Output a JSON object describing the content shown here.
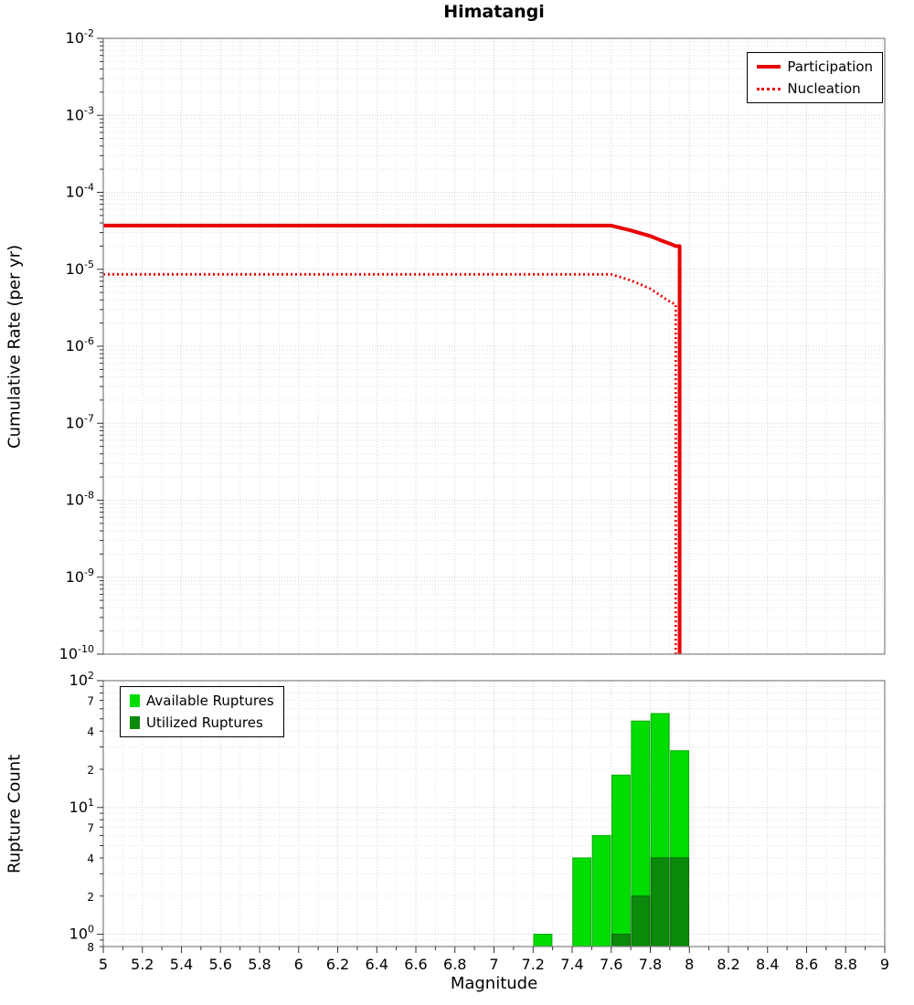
{
  "title": "Himatangi",
  "axes": {
    "x_title": "Magnitude",
    "top_y_title": "Cumulative Rate (per yr)",
    "bottom_y_title": "Rupture Count"
  },
  "legend_top": {
    "items": [
      {
        "label": "Participation",
        "style": "solid",
        "color": "#e80000"
      },
      {
        "label": "Nucleation",
        "style": "dotted",
        "color": "#e80000"
      }
    ]
  },
  "legend_bottom": {
    "items": [
      {
        "label": "Available Ruptures",
        "color": "#00dd00"
      },
      {
        "label": "Utilized Ruptures",
        "color": "#0b8a0b"
      }
    ]
  },
  "chart_data": [
    {
      "type": "line",
      "title": "Himatangi",
      "xlabel": "Magnitude",
      "ylabel": "Cumulative Rate (per yr)",
      "xlim": [
        5,
        9
      ],
      "ylim": [
        1e-10,
        0.01
      ],
      "yscale": "log",
      "grid": true,
      "legend_position": "top-right",
      "series": [
        {
          "name": "Participation",
          "color": "#e80000",
          "style": "solid",
          "width": 4,
          "x": [
            5.0,
            7.6,
            7.7,
            7.8,
            7.85,
            7.9,
            7.93,
            7.95,
            7.95
          ],
          "y": [
            3.7e-05,
            3.7e-05,
            3.2e-05,
            2.7e-05,
            2.4e-05,
            2.15e-05,
            2e-05,
            2e-05,
            1e-10
          ]
        },
        {
          "name": "Nucleation",
          "color": "#e80000",
          "style": "dotted",
          "width": 2.8,
          "x": [
            5.0,
            7.6,
            7.7,
            7.8,
            7.85,
            7.9,
            7.93,
            7.93
          ],
          "y": [
            8.6e-06,
            8.6e-06,
            7.2e-06,
            5.6e-06,
            4.6e-06,
            3.8e-06,
            3.5e-06,
            1e-10
          ]
        }
      ],
      "yticks": [
        {
          "v": 0.01,
          "label": "10^-2"
        },
        {
          "v": 0.001,
          "label": "10^-3"
        },
        {
          "v": 0.0001,
          "label": "10^-4"
        },
        {
          "v": 1e-05,
          "label": "10^-5"
        },
        {
          "v": 1e-06,
          "label": "10^-6"
        },
        {
          "v": 1e-07,
          "label": "10^-7"
        },
        {
          "v": 1e-08,
          "label": "10^-8"
        },
        {
          "v": 1e-09,
          "label": "10^-9"
        },
        {
          "v": 1e-10,
          "label": "10^-10"
        }
      ]
    },
    {
      "type": "bar",
      "xlabel": "Magnitude",
      "ylabel": "Rupture Count",
      "xlim": [
        5,
        9
      ],
      "ylim": [
        0.8,
        100
      ],
      "yscale": "log",
      "grid": true,
      "bar_width": 0.1,
      "legend_position": "top-left",
      "series": [
        {
          "name": "Available Ruptures",
          "color": "#00dd00",
          "edge": "#00a800",
          "bins": [
            {
              "x": 7.25,
              "count": 1
            },
            {
              "x": 7.45,
              "count": 4
            },
            {
              "x": 7.55,
              "count": 6
            },
            {
              "x": 7.65,
              "count": 18
            },
            {
              "x": 7.75,
              "count": 48
            },
            {
              "x": 7.85,
              "count": 55
            },
            {
              "x": 7.95,
              "count": 28
            }
          ]
        },
        {
          "name": "Utilized Ruptures",
          "color": "#0b8a0b",
          "edge": "#066006",
          "bins": [
            {
              "x": 7.65,
              "count": 1
            },
            {
              "x": 7.75,
              "count": 2
            },
            {
              "x": 7.85,
              "count": 4
            },
            {
              "x": 7.95,
              "count": 4
            }
          ]
        }
      ],
      "yticks": [
        {
          "v": 100,
          "label": "10^2"
        },
        {
          "v": 70,
          "label": "7",
          "minor": true
        },
        {
          "v": 40,
          "label": "4",
          "minor": true
        },
        {
          "v": 20,
          "label": "2",
          "minor": true
        },
        {
          "v": 10,
          "label": "10^1"
        },
        {
          "v": 7,
          "label": "7",
          "minor": true
        },
        {
          "v": 4,
          "label": "4",
          "minor": true
        },
        {
          "v": 2,
          "label": "2",
          "minor": true
        },
        {
          "v": 1,
          "label": "10^0"
        },
        {
          "v": 0.8,
          "label": "8",
          "minor": true
        }
      ],
      "xticks": [
        {
          "v": 5,
          "label": "5"
        },
        {
          "v": 5.2,
          "label": "5.2"
        },
        {
          "v": 5.4,
          "label": "5.4"
        },
        {
          "v": 5.6,
          "label": "5.6"
        },
        {
          "v": 5.8,
          "label": "5.8"
        },
        {
          "v": 6,
          "label": "6"
        },
        {
          "v": 6.2,
          "label": "6.2"
        },
        {
          "v": 6.4,
          "label": "6.4"
        },
        {
          "v": 6.6,
          "label": "6.6"
        },
        {
          "v": 6.8,
          "label": "6.8"
        },
        {
          "v": 7,
          "label": "7"
        },
        {
          "v": 7.2,
          "label": "7.2"
        },
        {
          "v": 7.4,
          "label": "7.4"
        },
        {
          "v": 7.6,
          "label": "7.6"
        },
        {
          "v": 7.8,
          "label": "7.8"
        },
        {
          "v": 8,
          "label": "8"
        },
        {
          "v": 8.2,
          "label": "8.2"
        },
        {
          "v": 8.4,
          "label": "8.4"
        },
        {
          "v": 8.6,
          "label": "8.6"
        },
        {
          "v": 8.8,
          "label": "8.8"
        },
        {
          "v": 9,
          "label": "9"
        }
      ]
    }
  ]
}
